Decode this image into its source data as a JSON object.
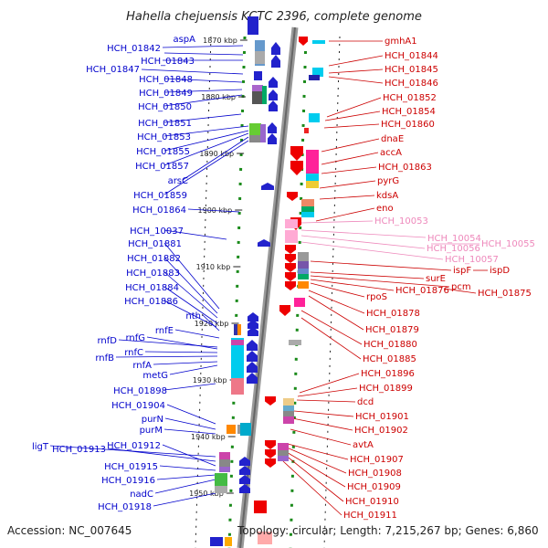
{
  "title": "Hahella chejuensis KCTC 2396, complete genome",
  "footer": {
    "accession": "Accession: NC_007645",
    "topology": "Topology: circular; Length: 7,215,267 bp; Genes: 6,860"
  },
  "colors": {
    "left_genes": "#0000cc",
    "right_genes": "#cc0000",
    "rna_genes": "#ee88bb"
  },
  "kbp_ticks": [
    {
      "label": "1870 kbp",
      "pos": 0
    },
    {
      "label": "1880 kbp",
      "pos": 1
    },
    {
      "label": "1890 kbp",
      "pos": 2
    },
    {
      "label": "1900 kbp",
      "pos": 3
    },
    {
      "label": "1910 kbp",
      "pos": 4
    },
    {
      "label": "1920 kbp",
      "pos": 5
    },
    {
      "label": "1930 kbp",
      "pos": 6
    },
    {
      "label": "1940 kbp",
      "pos": 7
    },
    {
      "label": "1950 kbp",
      "pos": 8
    }
  ],
  "left_labels": [
    "aspA",
    "HCH_01842",
    "HCH_01843",
    "HCH_01847",
    "HCH_01848",
    "HCH_01849",
    "HCH_01850",
    "HCH_01851",
    "HCH_01853",
    "HCH_01855",
    "HCH_01857",
    "arsC",
    "HCH_01859",
    "HCH_01864",
    "HCH_10037",
    "HCH_01881",
    "HCH_01882",
    "HCH_01883",
    "HCH_01884",
    "HCH_01886",
    "nth",
    "rnfE",
    "rnfD",
    "rnfG",
    "rnfC",
    "rnfB",
    "rnfA",
    "metG",
    "HCH_01898",
    "HCH_01904",
    "purN",
    "purM",
    "ligT",
    "HCH_01913",
    "HCH_01912",
    "HCH_01915",
    "HCH_01916",
    "nadC",
    "HCH_01918"
  ],
  "right_labels": [
    "gmhA1",
    "HCH_01844",
    "HCH_01845",
    "HCH_01846",
    "HCH_01852",
    "HCH_01854",
    "HCH_01860",
    "dnaE",
    "accA",
    "HCH_01863",
    "pyrG",
    "kdsA",
    "eno",
    "HCH_10053",
    "HCH_10054",
    "HCH_10055",
    "HCH_10056",
    "HCH_10057",
    "ispF",
    "ispD",
    "surE",
    "pcm",
    "HCH_01876",
    "HCH_01875",
    "rpoS",
    "HCH_01878",
    "HCH_01879",
    "HCH_01880",
    "HCH_01885",
    "HCH_01896",
    "HCH_01899",
    "dcd",
    "HCH_01901",
    "HCH_01902",
    "avtA",
    "HCH_01907",
    "HCH_01908",
    "HCH_01909",
    "HCH_01910",
    "HCH_01911"
  ]
}
